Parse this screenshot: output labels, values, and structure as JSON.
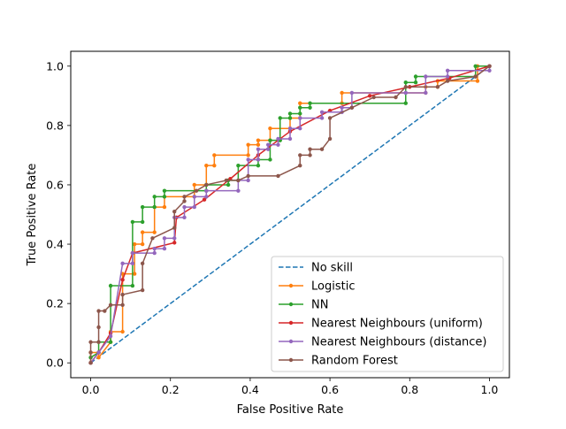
{
  "chart_data": {
    "type": "line",
    "title": "",
    "xlabel": "False Positive Rate",
    "ylabel": "True Positive Rate",
    "xlim": [
      -0.05,
      1.05
    ],
    "ylim": [
      -0.05,
      1.05
    ],
    "xticks": [
      "0.0",
      "0.2",
      "0.4",
      "0.6",
      "0.8",
      "1.0"
    ],
    "yticks": [
      "0.0",
      "0.2",
      "0.4",
      "0.6",
      "0.8",
      "1.0"
    ],
    "grid": false,
    "legend_position": "lower right",
    "series": [
      {
        "name": "No skill",
        "color": "#1f77b4",
        "style": "dashed",
        "markers": false,
        "points": [
          [
            0,
            0
          ],
          [
            1,
            1
          ]
        ]
      },
      {
        "name": "Logistic",
        "color": "#ff7f0e",
        "style": "solid",
        "markers": true,
        "points": [
          [
            0,
            0
          ],
          [
            0,
            0.035
          ],
          [
            0.02,
            0.035
          ],
          [
            0.02,
            0.018
          ],
          [
            0.05,
            0.07
          ],
          [
            0.05,
            0.105
          ],
          [
            0.08,
            0.105
          ],
          [
            0.08,
            0.3
          ],
          [
            0.11,
            0.3
          ],
          [
            0.11,
            0.4
          ],
          [
            0.13,
            0.4
          ],
          [
            0.13,
            0.44
          ],
          [
            0.16,
            0.44
          ],
          [
            0.16,
            0.525
          ],
          [
            0.185,
            0.525
          ],
          [
            0.185,
            0.56
          ],
          [
            0.26,
            0.56
          ],
          [
            0.26,
            0.6
          ],
          [
            0.29,
            0.6
          ],
          [
            0.29,
            0.665
          ],
          [
            0.31,
            0.665
          ],
          [
            0.31,
            0.7
          ],
          [
            0.395,
            0.7
          ],
          [
            0.395,
            0.735
          ],
          [
            0.42,
            0.735
          ],
          [
            0.42,
            0.75
          ],
          [
            0.45,
            0.75
          ],
          [
            0.45,
            0.79
          ],
          [
            0.5,
            0.79
          ],
          [
            0.5,
            0.825
          ],
          [
            0.525,
            0.825
          ],
          [
            0.525,
            0.875
          ],
          [
            0.63,
            0.875
          ],
          [
            0.63,
            0.91
          ],
          [
            0.84,
            0.91
          ],
          [
            0.84,
            0.93
          ],
          [
            0.87,
            0.93
          ],
          [
            0.87,
            0.95
          ],
          [
            0.97,
            0.95
          ],
          [
            0.97,
            1.0
          ],
          [
            1.0,
            1.0
          ]
        ]
      },
      {
        "name": "NN",
        "color": "#2ca02c",
        "style": "solid",
        "markers": true,
        "points": [
          [
            0,
            0.018
          ],
          [
            0.02,
            0.035
          ],
          [
            0.02,
            0.07
          ],
          [
            0.05,
            0.07
          ],
          [
            0.05,
            0.26
          ],
          [
            0.105,
            0.26
          ],
          [
            0.105,
            0.475
          ],
          [
            0.13,
            0.475
          ],
          [
            0.13,
            0.525
          ],
          [
            0.16,
            0.525
          ],
          [
            0.16,
            0.56
          ],
          [
            0.185,
            0.56
          ],
          [
            0.185,
            0.58
          ],
          [
            0.29,
            0.58
          ],
          [
            0.29,
            0.6
          ],
          [
            0.345,
            0.6
          ],
          [
            0.345,
            0.615
          ],
          [
            0.37,
            0.615
          ],
          [
            0.37,
            0.665
          ],
          [
            0.42,
            0.665
          ],
          [
            0.42,
            0.685
          ],
          [
            0.45,
            0.685
          ],
          [
            0.45,
            0.75
          ],
          [
            0.475,
            0.75
          ],
          [
            0.475,
            0.825
          ],
          [
            0.5,
            0.825
          ],
          [
            0.5,
            0.84
          ],
          [
            0.525,
            0.84
          ],
          [
            0.525,
            0.86
          ],
          [
            0.55,
            0.86
          ],
          [
            0.55,
            0.875
          ],
          [
            0.79,
            0.875
          ],
          [
            0.79,
            0.945
          ],
          [
            0.815,
            0.945
          ],
          [
            0.815,
            0.965
          ],
          [
            0.965,
            0.965
          ],
          [
            0.965,
            1.0
          ],
          [
            1.0,
            1.0
          ]
        ]
      },
      {
        "name": "Nearest Neighbours (uniform)",
        "color": "#d62728",
        "style": "solid",
        "markers": true,
        "points": [
          [
            0,
            0
          ],
          [
            0.02,
            0.035
          ],
          [
            0.05,
            0.1
          ],
          [
            0.08,
            0.28
          ],
          [
            0.105,
            0.37
          ],
          [
            0.21,
            0.405
          ],
          [
            0.215,
            0.49
          ],
          [
            0.285,
            0.55
          ],
          [
            0.35,
            0.62
          ],
          [
            0.42,
            0.7
          ],
          [
            0.5,
            0.78
          ],
          [
            0.6,
            0.85
          ],
          [
            0.7,
            0.9
          ],
          [
            0.8,
            0.93
          ],
          [
            0.9,
            0.96
          ],
          [
            1.0,
            1.0
          ]
        ]
      },
      {
        "name": "Nearest Neighbours (distance)",
        "color": "#9467bd",
        "style": "solid",
        "markers": true,
        "points": [
          [
            0,
            0
          ],
          [
            0.02,
            0.035
          ],
          [
            0.05,
            0.09
          ],
          [
            0.08,
            0.335
          ],
          [
            0.105,
            0.335
          ],
          [
            0.105,
            0.37
          ],
          [
            0.16,
            0.37
          ],
          [
            0.16,
            0.385
          ],
          [
            0.185,
            0.385
          ],
          [
            0.185,
            0.42
          ],
          [
            0.21,
            0.42
          ],
          [
            0.21,
            0.49
          ],
          [
            0.235,
            0.49
          ],
          [
            0.235,
            0.525
          ],
          [
            0.26,
            0.525
          ],
          [
            0.26,
            0.56
          ],
          [
            0.29,
            0.56
          ],
          [
            0.29,
            0.58
          ],
          [
            0.37,
            0.58
          ],
          [
            0.37,
            0.615
          ],
          [
            0.395,
            0.615
          ],
          [
            0.395,
            0.685
          ],
          [
            0.42,
            0.685
          ],
          [
            0.42,
            0.72
          ],
          [
            0.445,
            0.72
          ],
          [
            0.445,
            0.735
          ],
          [
            0.47,
            0.735
          ],
          [
            0.47,
            0.755
          ],
          [
            0.5,
            0.755
          ],
          [
            0.5,
            0.79
          ],
          [
            0.525,
            0.79
          ],
          [
            0.525,
            0.825
          ],
          [
            0.58,
            0.825
          ],
          [
            0.58,
            0.845
          ],
          [
            0.63,
            0.845
          ],
          [
            0.63,
            0.86
          ],
          [
            0.655,
            0.86
          ],
          [
            0.655,
            0.91
          ],
          [
            0.79,
            0.91
          ],
          [
            0.79,
            0.91
          ],
          [
            0.84,
            0.91
          ],
          [
            0.84,
            0.965
          ],
          [
            0.895,
            0.965
          ],
          [
            0.895,
            0.985
          ],
          [
            1.0,
            0.985
          ],
          [
            1.0,
            1.0
          ]
        ]
      },
      {
        "name": "Random Forest",
        "color": "#8c564b",
        "style": "solid",
        "markers": true,
        "points": [
          [
            0,
            0
          ],
          [
            0,
            0.035
          ],
          [
            0,
            0.07
          ],
          [
            0.02,
            0.07
          ],
          [
            0.02,
            0.12
          ],
          [
            0.02,
            0.175
          ],
          [
            0.035,
            0.175
          ],
          [
            0.05,
            0.195
          ],
          [
            0.08,
            0.195
          ],
          [
            0.08,
            0.23
          ],
          [
            0.13,
            0.245
          ],
          [
            0.13,
            0.335
          ],
          [
            0.155,
            0.42
          ],
          [
            0.21,
            0.455
          ],
          [
            0.21,
            0.51
          ],
          [
            0.235,
            0.545
          ],
          [
            0.235,
            0.56
          ],
          [
            0.265,
            0.58
          ],
          [
            0.29,
            0.6
          ],
          [
            0.34,
            0.615
          ],
          [
            0.37,
            0.615
          ],
          [
            0.395,
            0.63
          ],
          [
            0.47,
            0.63
          ],
          [
            0.525,
            0.665
          ],
          [
            0.525,
            0.7
          ],
          [
            0.55,
            0.7
          ],
          [
            0.55,
            0.72
          ],
          [
            0.58,
            0.72
          ],
          [
            0.6,
            0.755
          ],
          [
            0.6,
            0.825
          ],
          [
            0.655,
            0.86
          ],
          [
            0.71,
            0.895
          ],
          [
            0.765,
            0.895
          ],
          [
            0.79,
            0.93
          ],
          [
            0.87,
            0.93
          ],
          [
            0.895,
            0.95
          ],
          [
            0.965,
            0.965
          ],
          [
            1.0,
            1.0
          ]
        ]
      }
    ]
  }
}
